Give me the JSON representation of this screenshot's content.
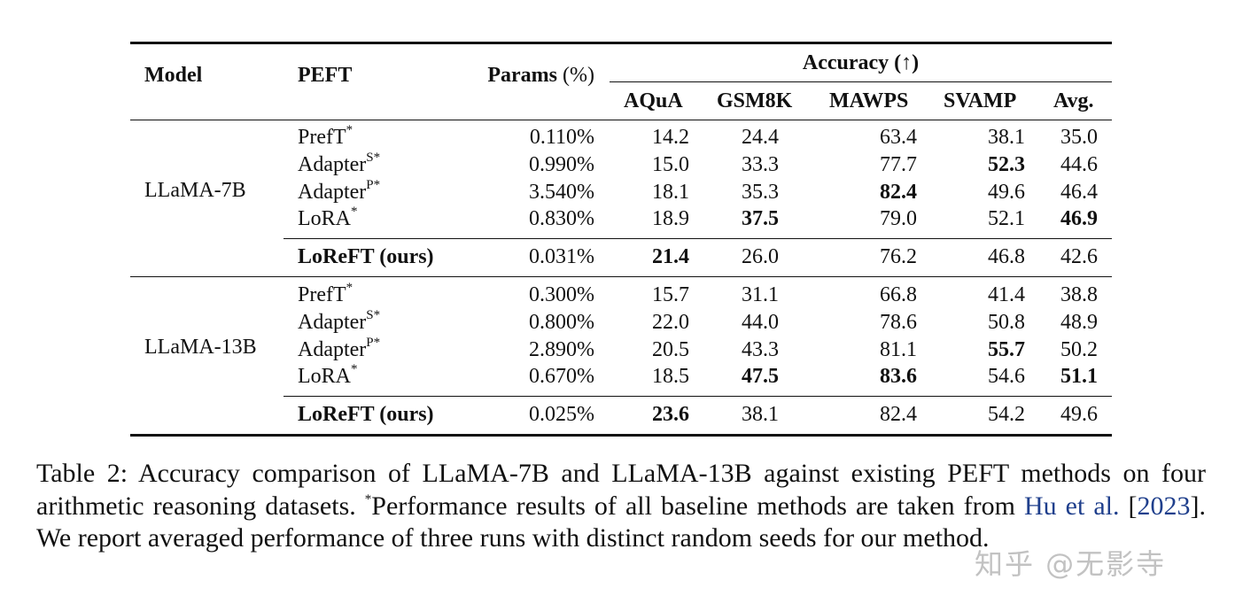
{
  "table": {
    "header": {
      "model": "Model",
      "peft": "PEFT",
      "params_label": "Params",
      "params_unit": "(%)",
      "accuracy": "Accuracy (↑)",
      "columns": [
        "AQuA",
        "GSM8K",
        "MAWPS",
        "SVAMP",
        "Avg."
      ]
    },
    "groups": [
      {
        "model": "LLaMA-7B",
        "rows": [
          {
            "method": "PrefT",
            "sup": "*",
            "params": "0.110%",
            "values": [
              "14.2",
              "24.4",
              "63.4",
              "38.1",
              "35.0"
            ],
            "bold": [
              false,
              false,
              false,
              false,
              false
            ]
          },
          {
            "method": "Adapter",
            "sup": "S*",
            "params": "0.990%",
            "values": [
              "15.0",
              "33.3",
              "77.7",
              "52.3",
              "44.6"
            ],
            "bold": [
              false,
              false,
              false,
              true,
              false
            ]
          },
          {
            "method": "Adapter",
            "sup": "P*",
            "params": "3.540%",
            "values": [
              "18.1",
              "35.3",
              "82.4",
              "49.6",
              "46.4"
            ],
            "bold": [
              false,
              false,
              true,
              false,
              false
            ]
          },
          {
            "method": "LoRA",
            "sup": "*",
            "params": "0.830%",
            "values": [
              "18.9",
              "37.5",
              "79.0",
              "52.1",
              "46.9"
            ],
            "bold": [
              false,
              true,
              false,
              false,
              true
            ]
          }
        ],
        "ours": {
          "method": "LoReFT (ours)",
          "params": "0.031%",
          "values": [
            "21.4",
            "26.0",
            "76.2",
            "46.8",
            "42.6"
          ],
          "bold": [
            true,
            false,
            false,
            false,
            false
          ]
        }
      },
      {
        "model": "LLaMA-13B",
        "rows": [
          {
            "method": "PrefT",
            "sup": "*",
            "params": "0.300%",
            "values": [
              "15.7",
              "31.1",
              "66.8",
              "41.4",
              "38.8"
            ],
            "bold": [
              false,
              false,
              false,
              false,
              false
            ]
          },
          {
            "method": "Adapter",
            "sup": "S*",
            "params": "0.800%",
            "values": [
              "22.0",
              "44.0",
              "78.6",
              "50.8",
              "48.9"
            ],
            "bold": [
              false,
              false,
              false,
              false,
              false
            ]
          },
          {
            "method": "Adapter",
            "sup": "P*",
            "params": "2.890%",
            "values": [
              "20.5",
              "43.3",
              "81.1",
              "55.7",
              "50.2"
            ],
            "bold": [
              false,
              false,
              false,
              true,
              false
            ]
          },
          {
            "method": "LoRA",
            "sup": "*",
            "params": "0.670%",
            "values": [
              "18.5",
              "47.5",
              "83.6",
              "54.6",
              "51.1"
            ],
            "bold": [
              false,
              true,
              true,
              false,
              true
            ]
          }
        ],
        "ours": {
          "method": "LoReFT (ours)",
          "params": "0.025%",
          "values": [
            "23.6",
            "38.1",
            "82.4",
            "54.2",
            "49.6"
          ],
          "bold": [
            true,
            false,
            false,
            false,
            false
          ]
        }
      }
    ]
  },
  "caption": {
    "label": "Table 2:",
    "text1": "Accuracy comparison of LLaMA-7B and LLaMA-13B against existing PEFT methods on four arithmetic reasoning datasets.",
    "star": "*",
    "text2": "Performance results of all baseline methods are taken from",
    "cite_authors": "Hu et al.",
    "cite_open": "[",
    "cite_year": "2023",
    "cite_close": "]",
    "text3": ". We report averaged performance of three runs with distinct random seeds for our method."
  },
  "watermark": "知乎 @无影寺"
}
